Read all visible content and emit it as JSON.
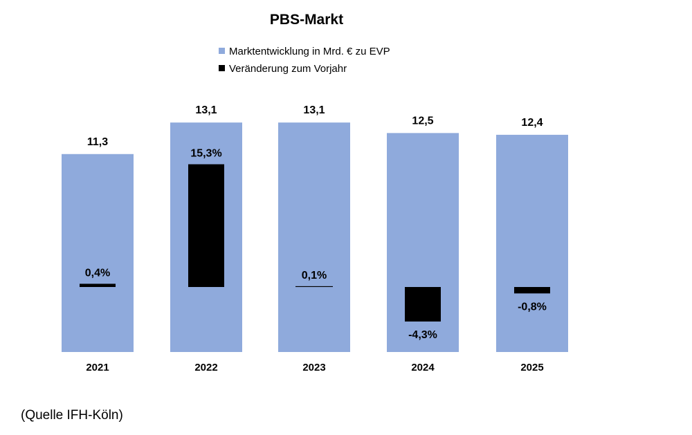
{
  "chart_data": {
    "type": "bar",
    "title": "PBS-Markt",
    "categories": [
      "2021",
      "2022",
      "2023",
      "2024",
      "2025"
    ],
    "series": [
      {
        "name": "Marktentwicklung in Mrd. € zu EVP",
        "values": [
          11.3,
          13.1,
          13.1,
          12.5,
          12.4
        ],
        "labels": [
          "11,3",
          "13,1",
          "13,1",
          "12,5",
          "12,4"
        ],
        "color": "#8faadc"
      },
      {
        "name": "Veränderung zum Vorjahr",
        "values": [
          0.4,
          15.3,
          0.1,
          -4.3,
          -0.8
        ],
        "labels": [
          "0,4%",
          "15,3%",
          "0,1%",
          "-4,3%",
          "-0,8%"
        ],
        "color": "#000000"
      }
    ],
    "legend_position": "top-center",
    "grid": false,
    "source": "(Quelle IFH-Köln)"
  }
}
